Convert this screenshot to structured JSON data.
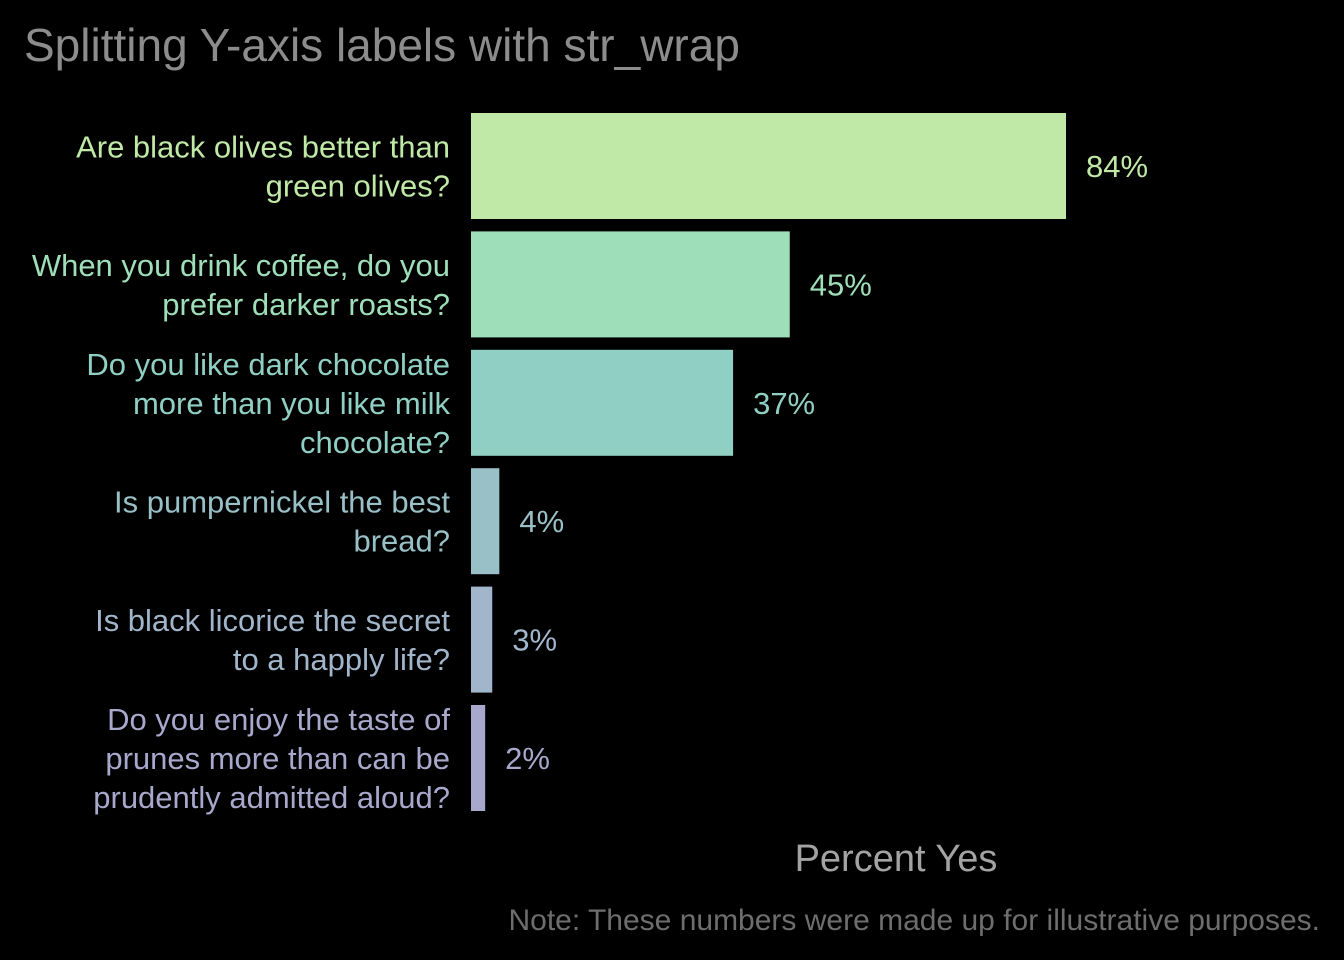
{
  "chart_data": {
    "type": "bar",
    "orientation": "horizontal",
    "title": "Splitting Y-axis labels with str_wrap",
    "xlabel": "Percent Yes",
    "ylabel": "",
    "caption": "Note: These numbers were made up for illustrative purposes.",
    "xlim": [
      0,
      100
    ],
    "grid": false,
    "legend": "none",
    "categories": [
      [
        "Are black olives better than",
        "green olives?"
      ],
      [
        "When you drink coffee, do you",
        "prefer darker roasts?"
      ],
      [
        "Do you like dark chocolate",
        "more than you like milk",
        "chocolate?"
      ],
      [
        "Is pumpernickel the best",
        "bread?"
      ],
      [
        "Is black licorice the secret",
        "to a happly life?"
      ],
      [
        "Do you enjoy the taste of",
        "prunes more than can be",
        "prudently admitted aloud?"
      ]
    ],
    "values": [
      84,
      45,
      37,
      4,
      3,
      2
    ],
    "value_labels": [
      "84%",
      "45%",
      "37%",
      "4%",
      "3%",
      "2%"
    ],
    "colors": [
      "#c0e8a6",
      "#9edeb9",
      "#90cfc3",
      "#99c0c7",
      "#a2b6cb",
      "#a7a8cc"
    ]
  }
}
